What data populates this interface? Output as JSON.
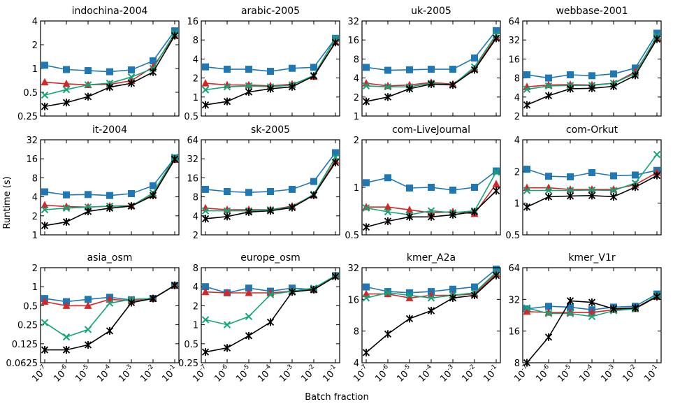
{
  "figure": {
    "ylabel": "Runtime (s)",
    "xlabel": "Batch fraction"
  },
  "chart_data": {
    "type": "line",
    "x": [
      1e-07,
      1e-06,
      1e-05,
      0.0001,
      0.001,
      0.01,
      0.1
    ],
    "x_scale": "log",
    "y_scale": "log",
    "x_tick_labels": [
      {
        "base": "10",
        "exp": "-7"
      },
      {
        "base": "10",
        "exp": "-6"
      },
      {
        "base": "10",
        "exp": "-5"
      },
      {
        "base": "10",
        "exp": "-4"
      },
      {
        "base": "10",
        "exp": "-3"
      },
      {
        "base": "10",
        "exp": "-2"
      },
      {
        "base": "10",
        "exp": "-1"
      }
    ],
    "series_styles": [
      {
        "color": "#1f77b4",
        "marker": "square"
      },
      {
        "color": "#d62728",
        "marker": "triangle"
      },
      {
        "color": "#11a579",
        "marker": "cross"
      },
      {
        "color": "#000000",
        "marker": "asterisk"
      }
    ],
    "grid": false,
    "legend": "none",
    "panels": [
      {
        "title": "indochina-2004",
        "ylim": [
          0.25,
          4
        ],
        "yticks": [
          0.25,
          0.5,
          1,
          2,
          4
        ],
        "ytick_labels": [
          "0.25",
          "0.5",
          "1",
          "2",
          "4"
        ],
        "series": [
          {
            "values": [
              1.1,
              0.97,
              0.94,
              0.91,
              0.96,
              1.25,
              3.0
            ]
          },
          {
            "values": [
              0.67,
              0.64,
              0.62,
              0.63,
              0.7,
              1.05,
              2.6
            ]
          },
          {
            "values": [
              0.46,
              0.54,
              0.62,
              0.65,
              0.78,
              1.0,
              2.8
            ]
          },
          {
            "values": [
              0.33,
              0.37,
              0.44,
              0.58,
              0.65,
              0.9,
              2.6
            ]
          }
        ]
      },
      {
        "title": "arabic-2005",
        "ylim": [
          0.5,
          16
        ],
        "yticks": [
          0.5,
          1,
          2,
          4,
          8,
          16
        ],
        "ytick_labels": [
          "0.5",
          "1",
          "2",
          "4",
          "8",
          "16"
        ],
        "series": [
          {
            "values": [
              3.0,
              2.75,
              2.75,
              2.55,
              2.85,
              2.95,
              8.5
            ]
          },
          {
            "values": [
              1.65,
              1.55,
              1.55,
              1.5,
              1.6,
              2.1,
              7.5
            ]
          },
          {
            "values": [
              1.3,
              1.45,
              1.5,
              1.45,
              1.55,
              2.2,
              8.5
            ]
          },
          {
            "values": [
              0.75,
              0.85,
              1.2,
              1.35,
              1.45,
              2.15,
              7.3
            ]
          }
        ]
      },
      {
        "title": "uk-2005",
        "ylim": [
          1,
          32
        ],
        "yticks": [
          1,
          2,
          4,
          8,
          16,
          32
        ],
        "ytick_labels": [
          "1",
          "2",
          "4",
          "8",
          "16",
          "32"
        ],
        "series": [
          {
            "values": [
              5.9,
              5.3,
              5.4,
              5.5,
              5.5,
              8.3,
              22.5
            ]
          },
          {
            "values": [
              3.3,
              3.0,
              3.1,
              3.4,
              3.2,
              5.6,
              18.0
            ]
          },
          {
            "values": [
              3.0,
              2.9,
              2.9,
              3.3,
              3.1,
              6.0,
              19.5
            ]
          },
          {
            "values": [
              1.7,
              2.0,
              2.7,
              3.2,
              3.1,
              5.4,
              17.0
            ]
          }
        ]
      },
      {
        "title": "webbase-2001",
        "ylim": [
          2,
          64
        ],
        "yticks": [
          2,
          4,
          8,
          16,
          32,
          64
        ],
        "ytick_labels": [
          "2",
          "4",
          "8",
          "16",
          "32",
          "64"
        ],
        "series": [
          {
            "values": [
              9.0,
              8.0,
              9.0,
              8.7,
              9.3,
              11.5,
              41.0
            ]
          },
          {
            "values": [
              5.8,
              6.2,
              6.3,
              6.2,
              6.6,
              10.0,
              34.0
            ]
          },
          {
            "values": [
              5.3,
              6.0,
              6.1,
              6.1,
              6.6,
              9.5,
              37.0
            ]
          },
          {
            "values": [
              3.0,
              4.2,
              5.4,
              5.5,
              5.9,
              8.8,
              33.0
            ]
          }
        ]
      },
      {
        "title": "it-2004",
        "ylim": [
          1,
          32
        ],
        "yticks": [
          1,
          2,
          4,
          8,
          16,
          32
        ],
        "ytick_labels": [
          "1",
          "2",
          "4",
          "8",
          "16",
          "32"
        ],
        "series": [
          {
            "values": [
              4.8,
              4.3,
              4.35,
              4.2,
              4.5,
              6.0,
              16.5
            ]
          },
          {
            "values": [
              2.95,
              2.8,
              2.75,
              2.85,
              2.9,
              4.3,
              15.5
            ]
          },
          {
            "values": [
              2.5,
              2.65,
              2.75,
              2.85,
              2.85,
              4.6,
              17.0
            ]
          },
          {
            "values": [
              1.4,
              1.6,
              2.35,
              2.65,
              2.85,
              4.2,
              15.8
            ]
          }
        ]
      },
      {
        "title": "sk-2005",
        "ylim": [
          2,
          64
        ],
        "yticks": [
          2,
          4,
          8,
          16,
          32,
          64
        ],
        "ytick_labels": [
          "2",
          "4",
          "8",
          "16",
          "32",
          "64"
        ],
        "series": [
          {
            "values": [
              10.5,
              9.7,
              9.4,
              9.7,
              10.5,
              14.0,
              40.0
            ]
          },
          {
            "values": [
              5.3,
              5.0,
              5.0,
              5.0,
              5.7,
              8.5,
              30.0
            ]
          },
          {
            "values": [
              4.8,
              4.8,
              4.8,
              5.0,
              5.5,
              8.8,
              34.0
            ]
          },
          {
            "values": [
              3.6,
              3.9,
              4.6,
              4.8,
              5.4,
              8.5,
              28.0
            ]
          }
        ]
      },
      {
        "title": "com-LiveJournal",
        "ylim": [
          0.5,
          2
        ],
        "yticks": [
          0.5,
          1,
          2
        ],
        "ytick_labels": [
          "0.5",
          "1",
          "2"
        ],
        "series": [
          {
            "values": [
              1.07,
              1.15,
              0.99,
              1.0,
              0.96,
              1.0,
              1.27
            ]
          },
          {
            "values": [
              0.75,
              0.75,
              0.72,
              0.69,
              0.7,
              0.68,
              1.05
            ]
          },
          {
            "values": [
              0.74,
              0.7,
              0.67,
              0.71,
              0.69,
              0.71,
              1.25
            ]
          },
          {
            "values": [
              0.56,
              0.61,
              0.65,
              0.65,
              0.67,
              0.7,
              0.95
            ]
          }
        ]
      },
      {
        "title": "com-Orkut",
        "ylim": [
          0.5,
          4
        ],
        "yticks": [
          0.5,
          1,
          2,
          4
        ],
        "ytick_labels": [
          "0.5",
          "1",
          "2",
          "4"
        ],
        "series": [
          {
            "values": [
              2.1,
              1.8,
              1.78,
              1.95,
              1.82,
              1.85,
              2.05
            ]
          },
          {
            "values": [
              1.4,
              1.4,
              1.35,
              1.35,
              1.35,
              1.5,
              1.95
            ]
          },
          {
            "values": [
              1.32,
              1.32,
              1.32,
              1.33,
              1.32,
              1.55,
              2.9
            ]
          },
          {
            "values": [
              0.92,
              1.15,
              1.17,
              1.18,
              1.15,
              1.42,
              1.83
            ]
          }
        ]
      },
      {
        "title": "asia_osm",
        "ylim": [
          0.0625,
          2
        ],
        "yticks": [
          0.0625,
          0.125,
          0.25,
          0.5,
          1,
          2
        ],
        "ytick_labels": [
          "0.0625",
          "0.125",
          "0.25",
          "0.5",
          "1",
          "2"
        ],
        "series": [
          {
            "values": [
              0.65,
              0.58,
              0.63,
              0.68,
              0.62,
              0.65,
              1.05
            ]
          },
          {
            "values": [
              0.58,
              0.5,
              0.5,
              0.63,
              0.6,
              0.65,
              1.05
            ]
          },
          {
            "values": [
              0.27,
              0.16,
              0.21,
              0.55,
              0.63,
              0.65,
              1.05
            ]
          },
          {
            "values": [
              0.1,
              0.1,
              0.12,
              0.2,
              0.56,
              0.65,
              1.05
            ]
          }
        ]
      },
      {
        "title": "europe_osm",
        "ylim": [
          0.25,
          8
        ],
        "yticks": [
          0.25,
          0.5,
          1,
          2,
          4,
          8
        ],
        "ytick_labels": [
          "0.25",
          "0.5",
          "1",
          "2",
          "4",
          "8"
        ],
        "series": [
          {
            "values": [
              4.0,
              3.2,
              3.8,
              3.4,
              3.8,
              3.6,
              6.0
            ]
          },
          {
            "values": [
              3.3,
              3.2,
              3.2,
              3.2,
              3.4,
              3.6,
              6.0
            ]
          },
          {
            "values": [
              1.2,
              1.0,
              1.35,
              3.0,
              3.4,
              3.8,
              6.0
            ]
          },
          {
            "values": [
              0.37,
              0.43,
              0.67,
              1.1,
              3.3,
              3.6,
              5.8
            ]
          }
        ]
      },
      {
        "title": "kmer_A2a",
        "ylim": [
          4,
          32
        ],
        "yticks": [
          4,
          8,
          16,
          32
        ],
        "ytick_labels": [
          "4",
          "8",
          "16",
          "32"
        ],
        "series": [
          {
            "values": [
              21.0,
              19.0,
              18.5,
              19.0,
              20.0,
              21.0,
              31.0
            ]
          },
          {
            "values": [
              18.0,
              18.0,
              16.5,
              17.5,
              17.5,
              18.0,
              28.0
            ]
          },
          {
            "values": [
              16.5,
              18.5,
              17.5,
              16.5,
              17.5,
              18.5,
              29.0
            ]
          },
          {
            "values": [
              5.0,
              7.5,
              10.5,
              12.5,
              16.5,
              17.5,
              27.0
            ]
          }
        ]
      },
      {
        "title": "kmer_V1r",
        "ylim": [
          8,
          64
        ],
        "yticks": [
          8,
          16,
          32,
          64
        ],
        "ytick_labels": [
          "8",
          "16",
          "32",
          "64"
        ],
        "series": [
          {
            "values": [
              26.0,
              27.5,
              27.0,
              25.5,
              27.0,
              27.5,
              36.0
            ]
          },
          {
            "values": [
              24.5,
              24.0,
              24.0,
              24.0,
              25.5,
              26.0,
              34.0
            ]
          },
          {
            "values": [
              26.5,
              23.5,
              23.5,
              22.0,
              25.0,
              26.0,
              35.0
            ]
          },
          {
            "values": [
              8.0,
              14.0,
              31.0,
              30.0,
              26.0,
              26.5,
              34.0
            ]
          }
        ]
      }
    ]
  }
}
